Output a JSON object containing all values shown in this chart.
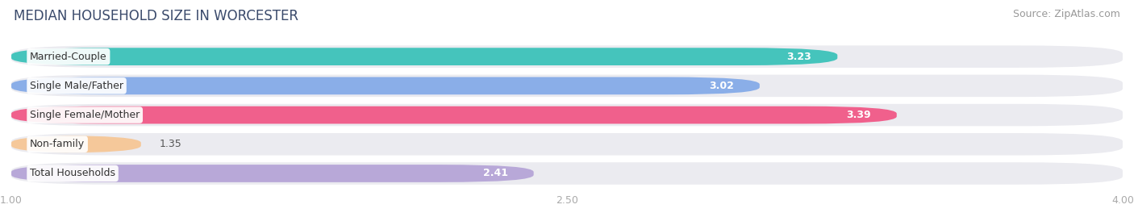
{
  "title": "MEDIAN HOUSEHOLD SIZE IN WORCESTER",
  "source": "Source: ZipAtlas.com",
  "categories": [
    "Married-Couple",
    "Single Male/Father",
    "Single Female/Mother",
    "Non-family",
    "Total Households"
  ],
  "values": [
    3.23,
    3.02,
    3.39,
    1.35,
    2.41
  ],
  "bar_colors": [
    "#45c4bc",
    "#8aaee8",
    "#f0608c",
    "#f5c89a",
    "#b8a8d8"
  ],
  "xlim_data": [
    1.0,
    4.0
  ],
  "xstart": 1.0,
  "xticks": [
    1.0,
    2.5,
    4.0
  ],
  "xticklabels": [
    "1.00",
    "2.50",
    "4.00"
  ],
  "title_fontsize": 12,
  "source_fontsize": 9,
  "label_fontsize": 9,
  "value_fontsize": 9,
  "background_color": "#ffffff",
  "bar_bg_color": "#ebebf0",
  "grid_color": "#ffffff",
  "title_color": "#3a4a6b",
  "source_color": "#999999",
  "tick_color": "#aaaaaa"
}
